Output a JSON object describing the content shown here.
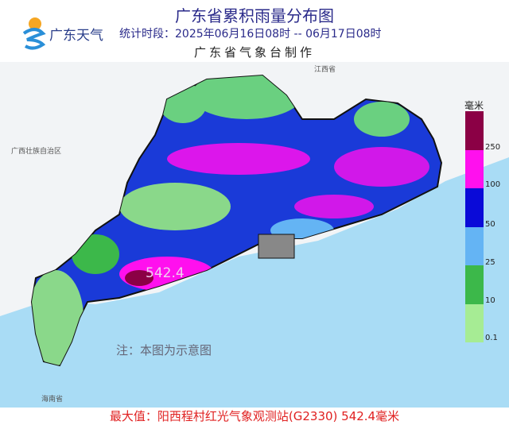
{
  "header": {
    "title": "广东省累积雨量分布图",
    "brand": "广东天气",
    "period": "统计时段：2025年06月16日08时  --  06月17日08时",
    "producer": "广东省气象台制作"
  },
  "map": {
    "labels": {
      "jiangxi": "江西省",
      "guangxi": "广西壮族自治区",
      "hainan": "海南省"
    },
    "max_value_label": "542.4",
    "note": "注：本图为示意图",
    "colors": {
      "sea": "#a9dcf5",
      "land_outside": "#f2f4f6"
    }
  },
  "legend": {
    "unit": "毫米",
    "bins": [
      {
        "color": "#8b0045",
        "label": "250"
      },
      {
        "color": "#ff10ee",
        "label": "100"
      },
      {
        "color": "#0a0ad8",
        "label": "50"
      },
      {
        "color": "#64b4f4",
        "label": "25"
      },
      {
        "color": "#3cb84a",
        "label": "10"
      },
      {
        "color": "#a6ec94",
        "label": "0.1"
      }
    ]
  },
  "footer": {
    "max_text": "最大值：阳西程村红光气象观测站(G2330) 542.4毫米"
  }
}
